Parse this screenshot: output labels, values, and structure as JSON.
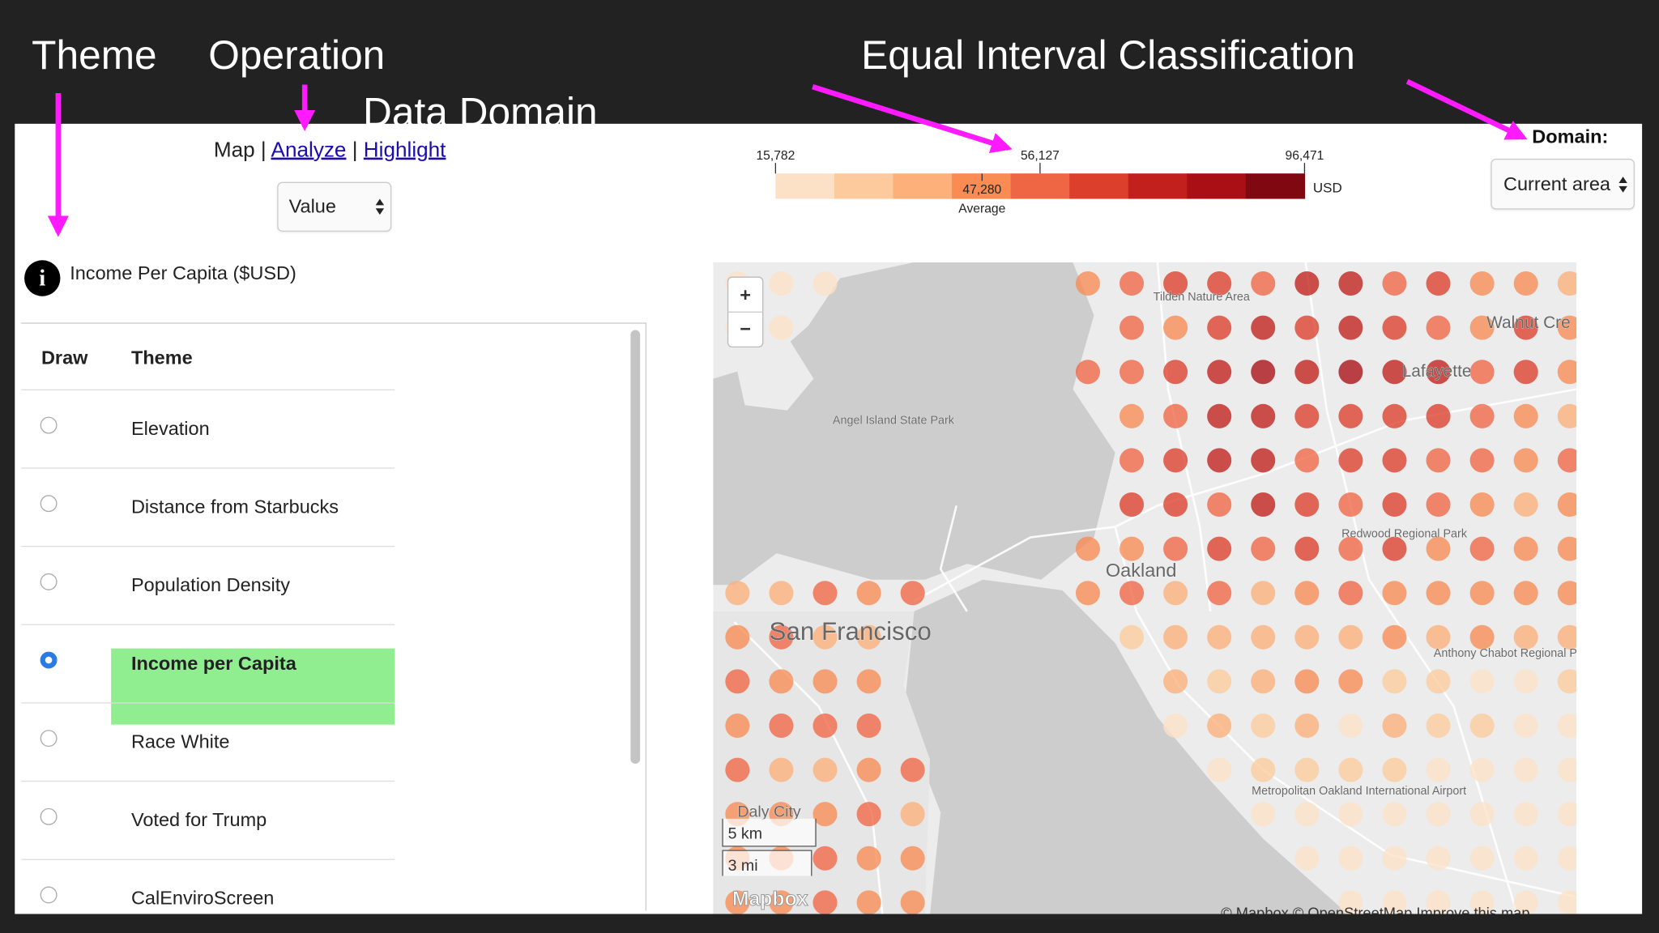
{
  "annotations": {
    "theme": "Theme",
    "operation": "Operation",
    "data_domain": "Data Domain",
    "classification": "Equal Interval Classification"
  },
  "nav": {
    "items": [
      "Map",
      "Analyze",
      "Highlight"
    ],
    "separator": "|"
  },
  "operation_select": "Value",
  "domain": {
    "label": "Domain:",
    "select": "Current area"
  },
  "legend": {
    "ticks": [
      {
        "value": 15782,
        "label": "15,782"
      },
      {
        "value": 56127,
        "label": "56,127"
      },
      {
        "value": 96471,
        "label": "96,471"
      }
    ],
    "average": {
      "value": 47280,
      "label": "47,280",
      "caption": "Average"
    },
    "unit": "USD",
    "colors": [
      "#fff1e2",
      "#fde1c6",
      "#fcca9c",
      "#fdb07a",
      "#f98b53",
      "#ef6645",
      "#dc3f2c",
      "#c2201c",
      "#a90f14",
      "#800810"
    ]
  },
  "layer_title": "Income Per Capita ($USD)",
  "table": {
    "headers": [
      "Draw",
      "Theme"
    ],
    "rows": [
      "Elevation",
      "Distance from Starbucks",
      "Population Density",
      "Income per Capita",
      "Race White",
      "Voted for Trump",
      "CalEnviroScreen"
    ],
    "selected": 3
  },
  "map": {
    "zoom_in": "+",
    "zoom_out": "−",
    "labels": [
      "Tilden Nature Area",
      "Walnut Cre",
      "Lafayette",
      "Angel Island State Park",
      "Oakland",
      "Redwood Regional Park",
      "San Francisco",
      "Anthony Chabot Regional Park",
      "Daly City",
      "Metropolitan Oakland International Airport"
    ],
    "scale": [
      "5 km",
      "3 mi"
    ],
    "logo": "Mapbox",
    "attribution": "© Mapbox © OpenStreetMap Improve this map"
  }
}
